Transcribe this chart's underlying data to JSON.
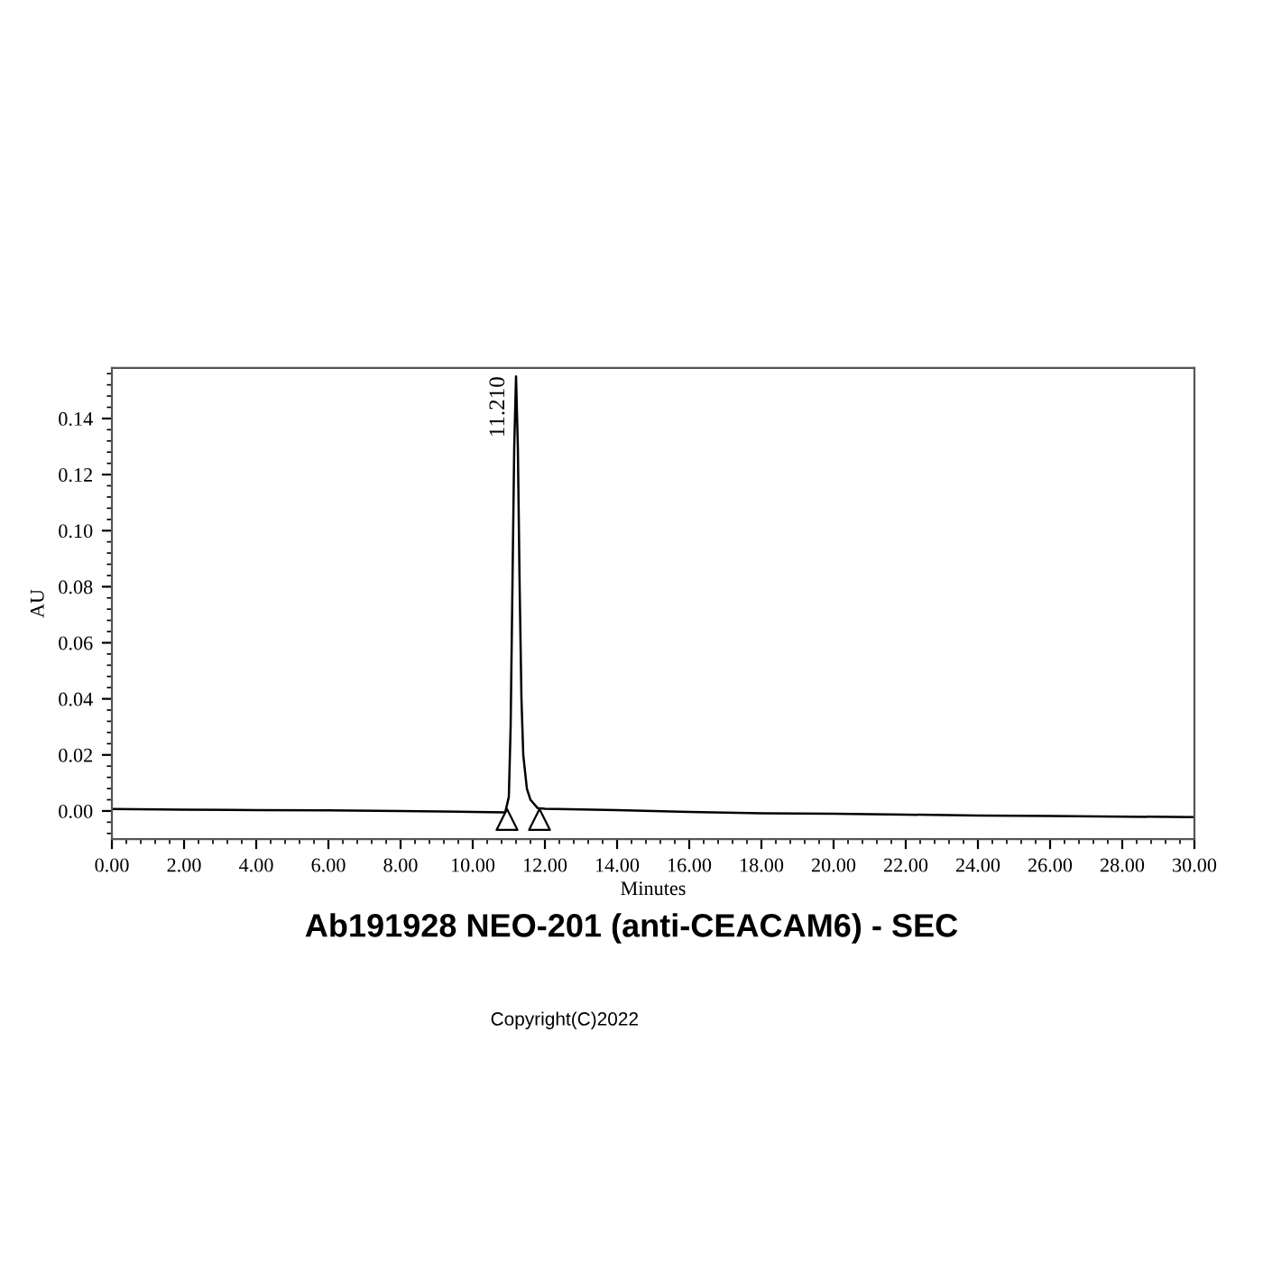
{
  "chart_data": {
    "type": "line",
    "title": "Ab191928 NEO-201 (anti-CEACAM6) - SEC",
    "xlabel": "Minutes",
    "ylabel": "AU",
    "xlim": [
      0,
      30
    ],
    "ylim": [
      -0.01,
      0.158
    ],
    "xticks": [
      {
        "value": 0,
        "label": "0.00"
      },
      {
        "value": 2,
        "label": "2.00"
      },
      {
        "value": 4,
        "label": "4.00"
      },
      {
        "value": 6,
        "label": "6.00"
      },
      {
        "value": 8,
        "label": "8.00"
      },
      {
        "value": 10,
        "label": "10.00"
      },
      {
        "value": 12,
        "label": "12.00"
      },
      {
        "value": 14,
        "label": "14.00"
      },
      {
        "value": 16,
        "label": "16.00"
      },
      {
        "value": 18,
        "label": "18.00"
      },
      {
        "value": 20,
        "label": "20.00"
      },
      {
        "value": 22,
        "label": "22.00"
      },
      {
        "value": 24,
        "label": "24.00"
      },
      {
        "value": 26,
        "label": "26.00"
      },
      {
        "value": 28,
        "label": "28.00"
      },
      {
        "value": 30,
        "label": "30.00"
      }
    ],
    "yticks": [
      {
        "value": 0,
        "label": "0.00"
      },
      {
        "value": 0.02,
        "label": "0.02"
      },
      {
        "value": 0.04,
        "label": "0.04"
      },
      {
        "value": 0.06,
        "label": "0.06"
      },
      {
        "value": 0.08,
        "label": "0.08"
      },
      {
        "value": 0.1,
        "label": "0.10"
      },
      {
        "value": 0.12,
        "label": "0.12"
      },
      {
        "value": 0.14,
        "label": "0.14"
      }
    ],
    "series": [
      {
        "color": "#000000",
        "marker": "none",
        "x": [
          0,
          2,
          4,
          6,
          8,
          10,
          10.9,
          11.0,
          11.05,
          11.1,
          11.15,
          11.2,
          11.25,
          11.3,
          11.35,
          11.4,
          11.5,
          11.6,
          11.8,
          12,
          14,
          16,
          18,
          20,
          22,
          24,
          26,
          28,
          30
        ],
        "values": [
          0.0007,
          0.0005,
          0.0003,
          0.0002,
          0.0,
          -0.0003,
          -0.0005,
          0.005,
          0.03,
          0.08,
          0.13,
          0.155,
          0.13,
          0.08,
          0.04,
          0.02,
          0.008,
          0.004,
          0.001,
          0.0008,
          0.0003,
          -0.0003,
          -0.0008,
          -0.001,
          -0.0013,
          -0.0016,
          -0.0018,
          -0.002,
          -0.0022
        ]
      },
      {
        "type": "scatter",
        "color": "#000000",
        "marker": "triangle",
        "x": [
          10.95,
          11.85
        ],
        "values": [
          -0.003,
          -0.003
        ]
      }
    ],
    "annotations": [
      {
        "text": "11.210",
        "x": 11.21,
        "y": 0.155
      },
      "Copyright(C)2022"
    ],
    "grid": false
  }
}
